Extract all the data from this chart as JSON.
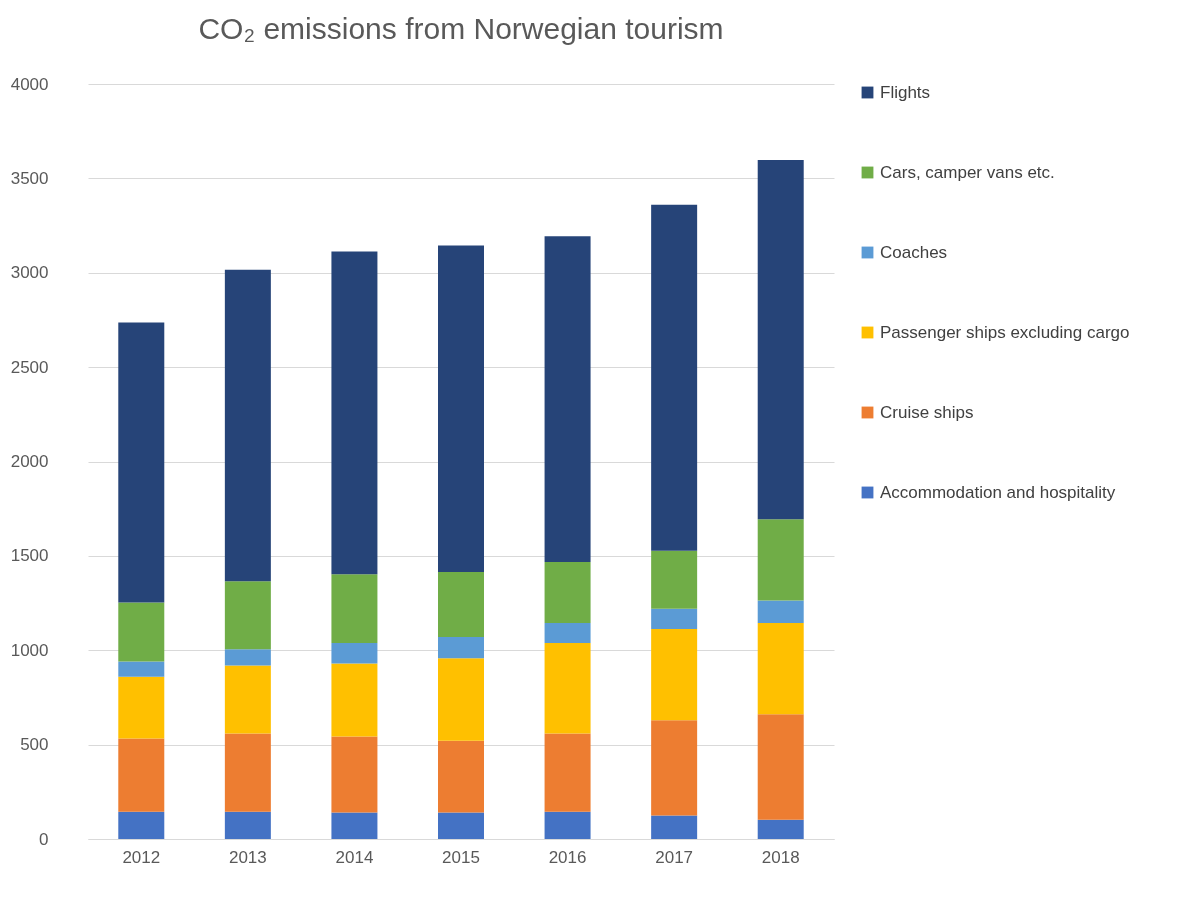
{
  "chart_data": {
    "type": "bar",
    "title": "CO₂ emissions from Norwegian tourism",
    "stacked": true,
    "categories": [
      "2012",
      "2013",
      "2014",
      "2015",
      "2016",
      "2017",
      "2018"
    ],
    "series": [
      {
        "name": "Accommodation and hospitality",
        "color": "#4472c4",
        "values": [
          145,
          145,
          140,
          140,
          145,
          124,
          102
        ]
      },
      {
        "name": "Cruise ships",
        "color": "#ed7d31",
        "values": [
          387,
          414,
          403,
          381,
          414,
          505,
          559
        ]
      },
      {
        "name": "Passenger ships excluding cargo",
        "color": "#ffc000",
        "values": [
          328,
          360,
          387,
          436,
          479,
          484,
          484
        ]
      },
      {
        "name": "Coaches",
        "color": "#5b9bd5",
        "values": [
          81,
          86,
          108,
          113,
          107,
          107,
          118
        ]
      },
      {
        "name": "Cars, camper vans etc.",
        "color": "#70ad47",
        "values": [
          312,
          361,
          365,
          344,
          323,
          307,
          431
        ]
      },
      {
        "name": "Flights",
        "color": "#264478",
        "values": [
          1484,
          1650,
          1710,
          1731,
          1726,
          1833,
          1903
        ]
      }
    ],
    "ylim": [
      0,
      4000
    ],
    "yticks": [
      0,
      500,
      1000,
      1500,
      2000,
      2500,
      3000,
      3500,
      4000
    ],
    "grid": "y",
    "legend": "right"
  }
}
